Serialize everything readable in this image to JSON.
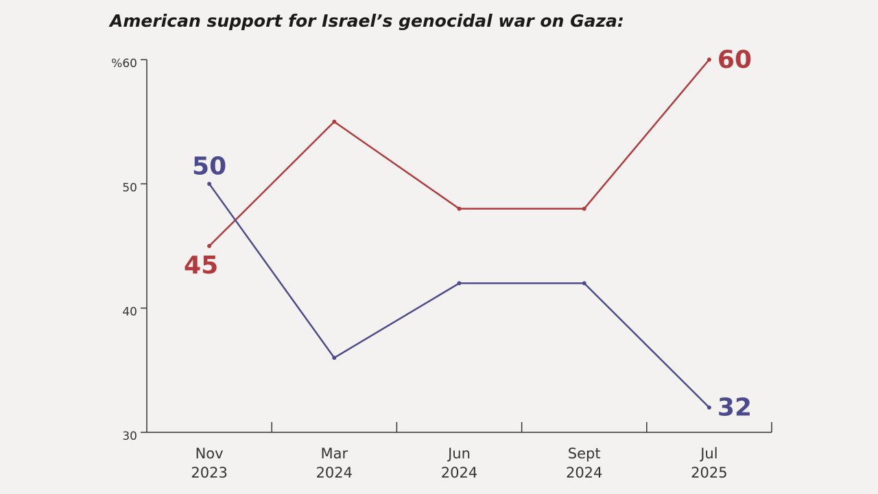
{
  "chart_data": {
    "type": "line",
    "title": "American support for Israel’s genocidal war on Gaza:",
    "categories": [
      "Nov\n2023",
      "Mar\n2024",
      "Jun\n2024",
      "Sept\n2024",
      "Jul\n2025"
    ],
    "series": [
      {
        "color": "#b23a3d",
        "values": [
          45,
          55,
          48,
          48,
          60
        ]
      },
      {
        "color": "#4b4a8e",
        "values": [
          50,
          36,
          42,
          42,
          32
        ]
      }
    ],
    "ylim": [
      30,
      60
    ],
    "yticks": [
      30,
      40,
      50,
      {
        "value": 60,
        "label": "%60"
      }
    ],
    "grid": false
  }
}
